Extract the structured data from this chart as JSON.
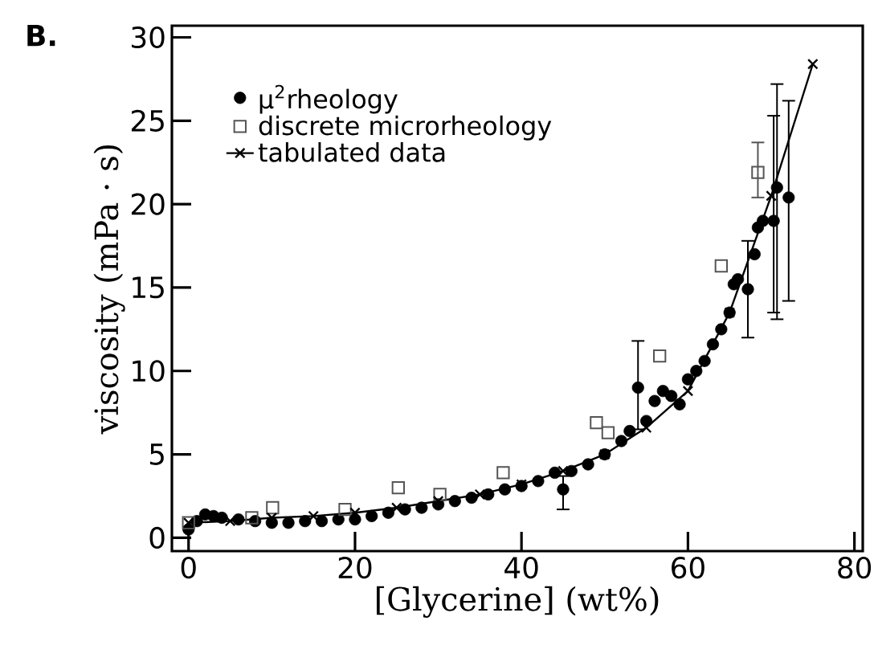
{
  "chart_data": {
    "type": "scatter",
    "xlabel": "[Glycerine] (wt%)",
    "ylabel": "viscosity (mPa · s)",
    "annotations": [
      "B."
    ],
    "xlim": [
      -2,
      81
    ],
    "ylim": [
      -0.8,
      30.7
    ],
    "xticks": [
      0,
      20,
      40,
      60,
      80
    ],
    "yticks": [
      0,
      5,
      10,
      15,
      20,
      25,
      30
    ],
    "grid": false,
    "legend": "top left",
    "series": [
      {
        "name": "μ$^{2}$rheology",
        "marker": "circle",
        "color": "#000000",
        "x": [
          0,
          1,
          2,
          3,
          4,
          6,
          8,
          10,
          12,
          14,
          16,
          18,
          20,
          22,
          24,
          26,
          28,
          30,
          32,
          34,
          36,
          38,
          40,
          42,
          44,
          45,
          46,
          48,
          50,
          52,
          53,
          54,
          55,
          56,
          57,
          58,
          59,
          60,
          61,
          62,
          63,
          64,
          65,
          65.5,
          66,
          67.2,
          68,
          68.4,
          69,
          70.3,
          70.7,
          72.1
        ],
        "values": [
          0.5,
          1.0,
          1.4,
          1.3,
          1.2,
          1.1,
          1.0,
          0.9,
          0.9,
          1.0,
          1.0,
          1.1,
          1.1,
          1.3,
          1.5,
          1.7,
          1.8,
          2.0,
          2.2,
          2.4,
          2.6,
          2.9,
          3.1,
          3.4,
          3.9,
          2.9,
          4.0,
          4.4,
          5.0,
          5.8,
          6.4,
          9.0,
          7.0,
          8.2,
          8.8,
          8.5,
          8.0,
          9.5,
          10.0,
          10.6,
          11.6,
          12.5,
          13.5,
          15.2,
          15.5,
          14.9,
          17.0,
          18.6,
          19.0,
          19.0,
          21.0,
          20.4
        ],
        "errors": [
          null,
          null,
          null,
          null,
          null,
          null,
          null,
          null,
          null,
          null,
          null,
          null,
          null,
          null,
          null,
          null,
          null,
          null,
          null,
          null,
          null,
          null,
          null,
          null,
          null,
          [
            1.7,
            3.7
          ],
          null,
          null,
          null,
          null,
          null,
          [
            6.5,
            11.8
          ],
          null,
          null,
          null,
          null,
          null,
          null,
          null,
          null,
          null,
          null,
          null,
          null,
          null,
          [
            12.0,
            17.8
          ],
          null,
          null,
          null,
          [
            13.5,
            25.3
          ],
          [
            13.1,
            27.2
          ],
          [
            14.2,
            26.2
          ]
        ]
      },
      {
        "name": "discrete microrheology",
        "marker": "square",
        "color": "#555555",
        "x": [
          0,
          7.6,
          10.1,
          18.8,
          25.2,
          30.2,
          37.8,
          49.0,
          50.4,
          56.6,
          64,
          68.4
        ],
        "values": [
          0.9,
          1.2,
          1.8,
          1.7,
          3.0,
          2.6,
          3.9,
          6.9,
          6.3,
          10.9,
          16.3,
          21.9
        ],
        "errors": [
          null,
          null,
          null,
          null,
          null,
          null,
          null,
          null,
          null,
          null,
          null,
          [
            20.4,
            23.7
          ]
        ]
      },
      {
        "name": "tabulated data",
        "type": "line",
        "marker": "cross",
        "color": "#000000",
        "x": [
          0,
          5,
          10,
          15,
          20,
          25,
          30,
          35,
          40,
          45,
          50,
          55,
          60,
          65,
          70,
          75
        ],
        "values": [
          0.9,
          1.0,
          1.2,
          1.3,
          1.5,
          1.8,
          2.2,
          2.6,
          3.2,
          4.0,
          5.0,
          6.6,
          8.8,
          13.5,
          20.5,
          28.4
        ]
      }
    ]
  }
}
